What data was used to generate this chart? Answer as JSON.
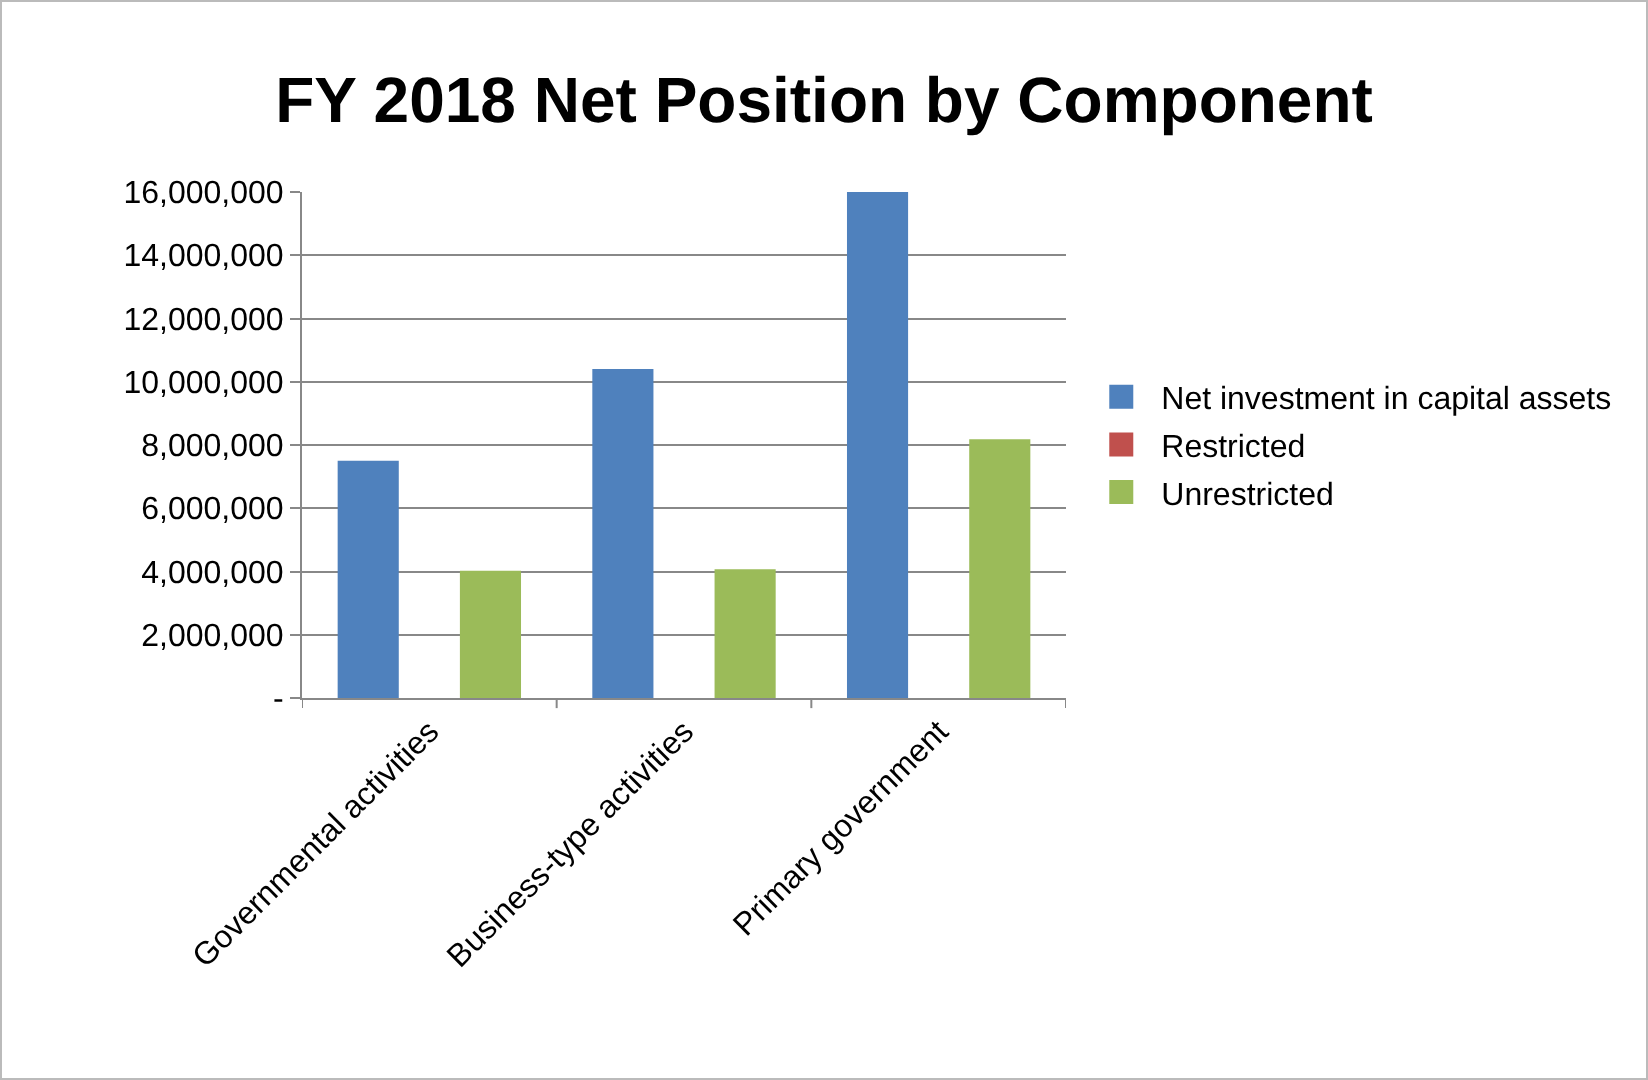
{
  "chart_data": {
    "type": "bar",
    "title": "FY 2018 Net Position by Component",
    "categories": [
      "Governmental activities",
      "Business-type activities",
      "Primary government"
    ],
    "series": [
      {
        "name": "Net investment in capital assets",
        "color": "#4f81bd",
        "values": [
          7500000,
          10400000,
          16000000
        ]
      },
      {
        "name": "Restricted",
        "color": "#c0504d",
        "values": [
          0,
          0,
          0
        ]
      },
      {
        "name": "Unrestricted",
        "color": "#9bbb59",
        "values": [
          4020000,
          4070000,
          8180000
        ]
      }
    ],
    "ylim": [
      0,
      16000000
    ],
    "yticks": [
      {
        "value": 0,
        "label": "-"
      },
      {
        "value": 2000000,
        "label": "2,000,000"
      },
      {
        "value": 4000000,
        "label": "4,000,000"
      },
      {
        "value": 6000000,
        "label": "6,000,000"
      },
      {
        "value": 8000000,
        "label": "8,000,000"
      },
      {
        "value": 10000000,
        "label": "10,000,000"
      },
      {
        "value": 12000000,
        "label": "12,000,000"
      },
      {
        "value": 14000000,
        "label": "14,000,000"
      },
      {
        "value": 16000000,
        "label": "16,000,000"
      }
    ],
    "grid": "y",
    "legend": "right"
  }
}
